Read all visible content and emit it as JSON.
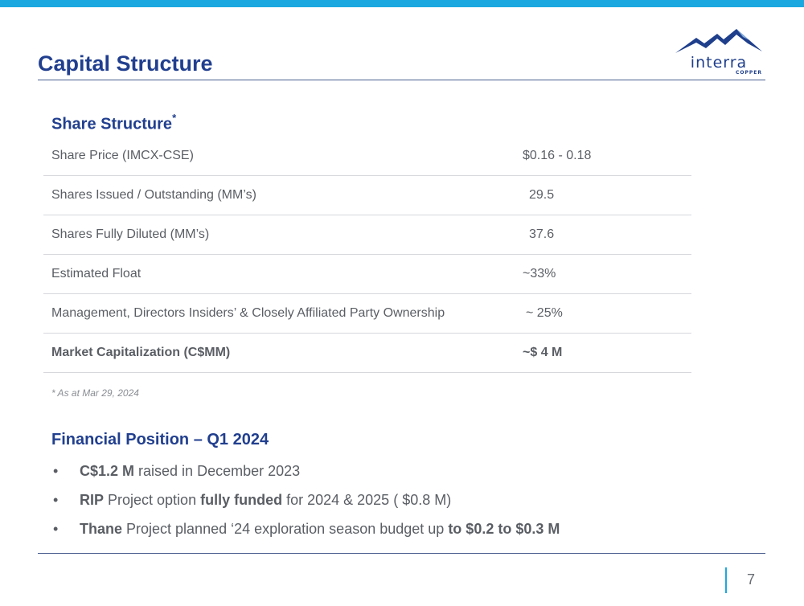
{
  "slide": {
    "title": "Capital Structure",
    "page_number": "7",
    "accent_color": "#1ba8e0",
    "title_color": "#213f8f"
  },
  "logo": {
    "word": "interra",
    "sub": "COPPER",
    "icon": "mountain-logo-icon"
  },
  "share_structure": {
    "heading": "Share Structure",
    "heading_mark": "*",
    "rows": [
      {
        "label": "Share Price (IMCX-CSE)",
        "value": "$0.16 - 0.18"
      },
      {
        "label": "Shares Issued / Outstanding (MM’s)",
        "value": "29.5"
      },
      {
        "label": "Shares Fully Diluted (MM’s)",
        "value": "37.6"
      },
      {
        "label": "Estimated Float",
        "value": "~33%"
      },
      {
        "label": "Management, Directors Insiders’ & Closely Affiliated Party Ownership",
        "value": "~ 25%"
      },
      {
        "label": "Market Capitalization (C$MM)",
        "value": "~$ 4 M"
      }
    ],
    "footnote": "* As at Mar 29, 2024"
  },
  "financial_position": {
    "heading": "Financial Position – Q1 2024",
    "bullet": "•",
    "items": [
      {
        "parts": [
          {
            "bold": "C$1.2 M"
          },
          {
            "text": " raised in December 2023"
          }
        ]
      },
      {
        "parts": [
          {
            "bold": "RIP"
          },
          {
            "text": " Project option "
          },
          {
            "bold": "fully funded"
          },
          {
            "text": " for 2024 & 2025 ( $0.8 M)"
          }
        ]
      },
      {
        "parts": [
          {
            "bold": "Thane"
          },
          {
            "text": " Project planned ‘24 exploration season budget up "
          },
          {
            "bold": "to $0.2 to $0.3 M"
          }
        ]
      }
    ]
  }
}
